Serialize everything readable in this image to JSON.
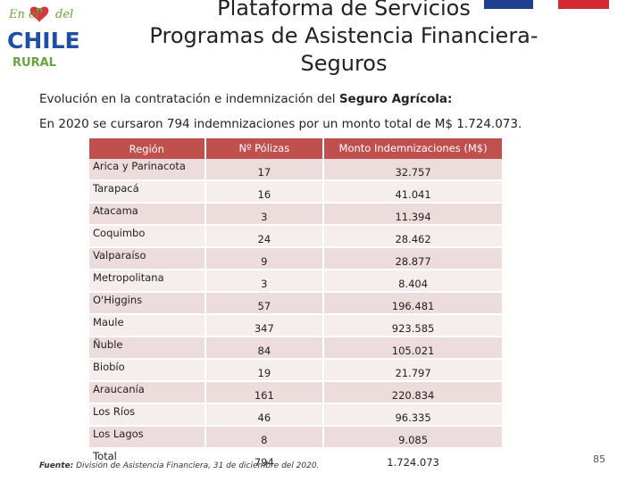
{
  "flag": {
    "blue": "#1f3f8f",
    "white": "#ffffff",
    "red": "#d22a33"
  },
  "logo": {
    "line1": "En el",
    "line2": "CHILE",
    "line3": "RURAL"
  },
  "title": {
    "line1": "Plataforma de Servicios",
    "line2": "Programas de Asistencia Financiera-",
    "line3": "Seguros"
  },
  "intro": {
    "l1_prefix": "Evolución en la contratación e indemnización del ",
    "l1_highlight": "Seguro Agrícola:",
    "l2": "En 2020 se cursaron 794 indemnizaciones por un monto total de M$ 1.724.073."
  },
  "table": {
    "headers": [
      "Región",
      "Nº Pólizas",
      "Monto Indemnizaciones (M$)"
    ],
    "rows": [
      {
        "region": "Arica y Parinacota",
        "polizas": "17",
        "monto": "32.757"
      },
      {
        "region": "Tarapacá",
        "polizas": "16",
        "monto": "41.041"
      },
      {
        "region": "Atacama",
        "polizas": "3",
        "monto": "11.394"
      },
      {
        "region": "Coquimbo",
        "polizas": "24",
        "monto": "28.462"
      },
      {
        "region": "Valparaíso",
        "polizas": "9",
        "monto": "28.877"
      },
      {
        "region": "Metropolitana",
        "polizas": "3",
        "monto": "8.404"
      },
      {
        "region": "O'Higgins",
        "polizas": "57",
        "monto": "196.481"
      },
      {
        "region": "Maule",
        "polizas": "347",
        "monto": "923.585"
      },
      {
        "region": "Ñuble",
        "polizas": "84",
        "monto": "105.021"
      },
      {
        "region": "Biobío",
        "polizas": "19",
        "monto": "21.797"
      },
      {
        "region": "Araucanía",
        "polizas": "161",
        "monto": "220.834"
      },
      {
        "region": "Los Ríos",
        "polizas": "46",
        "monto": "96.335"
      },
      {
        "region": "Los Lagos",
        "polizas": "8",
        "monto": "9.085"
      },
      {
        "region": "Total",
        "polizas": "794",
        "monto": "1.724.073"
      }
    ]
  },
  "source": {
    "label": "Fuente:",
    "text": " División de Asistencia Financiera, 31 de diciembre del 2020."
  },
  "page_number": "85"
}
